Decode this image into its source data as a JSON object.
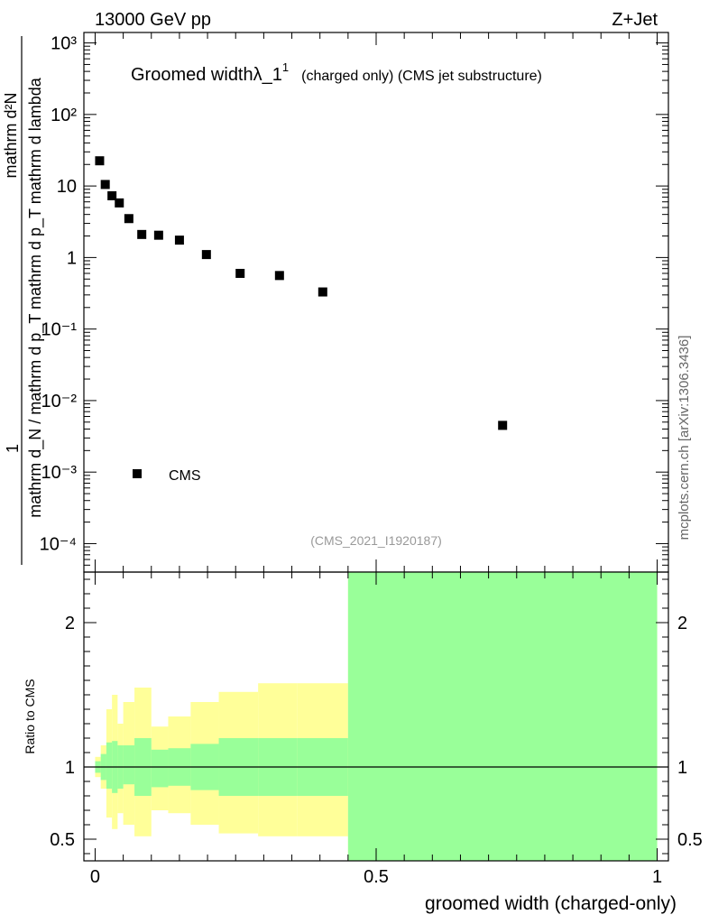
{
  "header": {
    "left": "13000 GeV pp",
    "right": "Z+Jet"
  },
  "title": {
    "main": "Groomed widthλ_1",
    "sup": "1",
    "sub": "(charged only) (CMS jet substructure)"
  },
  "side_label": "mcplots.cern.ch [arXiv:1306.3436]",
  "watermark": "(CMS_2021_I1920187)",
  "main_ylabel": {
    "numerator": "mathrm d²N",
    "denominator": "mathrm d_N / mathrm d p_T mathrm d p_T mathrm d lambda",
    "prefix": "1"
  },
  "ratio_ylabel": "Ratio to CMS",
  "xlabel": "groomed width (charged-only)",
  "legend": {
    "label": "CMS",
    "position": "lower-left"
  },
  "colors": {
    "marker": "#000000",
    "band_outer": "#ffff99",
    "band_inner": "#99ff99",
    "ratio_line": "#000000"
  },
  "chart_data": [
    {
      "type": "scatter",
      "name": "main",
      "yscale": "log",
      "xlim": [
        -0.02,
        1.02
      ],
      "ylim": [
        4e-05,
        1400
      ],
      "ytick_labels": [
        "10⁻⁴",
        "10⁻³",
        "10⁻²",
        "10⁻¹",
        "1",
        "10",
        "10²",
        "10³"
      ],
      "ytick_values": [
        0.0001,
        0.001,
        0.01,
        0.1,
        1,
        10,
        100,
        1000
      ],
      "series": [
        {
          "name": "CMS",
          "x": [
            0.008,
            0.018,
            0.03,
            0.043,
            0.06,
            0.083,
            0.113,
            0.15,
            0.198,
            0.258,
            0.328,
            0.405,
            0.725
          ],
          "y": [
            22.5,
            10.5,
            7.3,
            5.8,
            3.5,
            2.1,
            2.05,
            1.75,
            1.1,
            0.6,
            0.56,
            0.33,
            0.0045
          ]
        }
      ]
    },
    {
      "type": "area",
      "name": "ratio",
      "xlim": [
        -0.02,
        1.02
      ],
      "ylim": [
        0.35,
        2.35
      ],
      "ytick_labels": [
        "0.5",
        "1",
        "2"
      ],
      "ytick_values": [
        0.5,
        1,
        2
      ],
      "xtick_labels": [
        "0",
        "0.5",
        "1"
      ],
      "xtick_values": [
        0,
        0.5,
        1
      ],
      "reference_line": 1,
      "bins": [
        0,
        0.01,
        0.02,
        0.03,
        0.04,
        0.05,
        0.07,
        0.1,
        0.13,
        0.17,
        0.22,
        0.29,
        0.36,
        0.45,
        1.0
      ],
      "outer_band": {
        "low": [
          0.93,
          0.85,
          0.65,
          0.57,
          0.68,
          0.6,
          0.52,
          0.7,
          0.68,
          0.6,
          0.54,
          0.52,
          0.52,
          0.35
        ],
        "high": [
          1.07,
          1.15,
          1.4,
          1.5,
          1.3,
          1.45,
          1.55,
          1.28,
          1.35,
          1.45,
          1.52,
          1.58,
          1.58,
          2.35
        ]
      },
      "inner_band": {
        "low": [
          0.96,
          0.91,
          0.85,
          0.82,
          0.85,
          0.88,
          0.8,
          0.86,
          0.87,
          0.84,
          0.8,
          0.8,
          0.8,
          0.35
        ],
        "high": [
          1.04,
          1.09,
          1.17,
          1.18,
          1.15,
          1.15,
          1.2,
          1.12,
          1.13,
          1.16,
          1.2,
          1.2,
          1.2,
          2.35
        ]
      }
    }
  ]
}
